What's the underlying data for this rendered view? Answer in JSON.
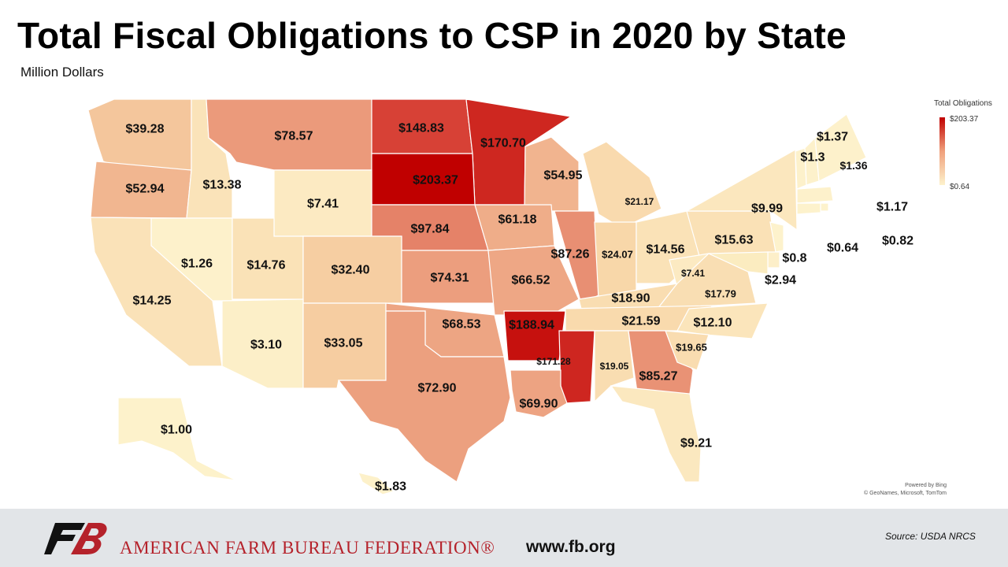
{
  "header": {
    "title": "Total Fiscal Obligations to CSP in 2020 by State",
    "subtitle": "Million Dollars"
  },
  "legend": {
    "title": "Total Obligations",
    "max_label": "$203.37",
    "min_label": "$0.64",
    "max_color": "#c00000",
    "min_color": "#fdf2cc"
  },
  "attribution": {
    "line1": "Powered by Bing",
    "line2": "© GeoNames, Microsoft, TomTom"
  },
  "footer": {
    "org_name": "AMERICAN FARM BUREAU FEDERATION®",
    "url": "www.fb.org",
    "source": "Source:  USDA  NRCS",
    "brand_color": "#b5222b"
  },
  "states": [
    {
      "abbr": "WA",
      "label": "$39.28",
      "value": 39.28
    },
    {
      "abbr": "OR",
      "label": "$52.94",
      "value": 52.94
    },
    {
      "abbr": "ID",
      "label": "$13.38",
      "value": 13.38
    },
    {
      "abbr": "MT",
      "label": "$78.57",
      "value": 78.57
    },
    {
      "abbr": "ND",
      "label": "$148.83",
      "value": 148.83
    },
    {
      "abbr": "MN",
      "label": "$170.70",
      "value": 170.7
    },
    {
      "abbr": "SD",
      "label": "$203.37",
      "value": 203.37
    },
    {
      "abbr": "WY",
      "label": "$7.41",
      "value": 7.41
    },
    {
      "abbr": "WI",
      "label": "$54.95",
      "value": 54.95
    },
    {
      "abbr": "MI",
      "label": "$21.17",
      "value": 21.17
    },
    {
      "abbr": "NE",
      "label": "$97.84",
      "value": 97.84
    },
    {
      "abbr": "IA",
      "label": "$61.18",
      "value": 61.18
    },
    {
      "abbr": "NV",
      "label": "$1.26",
      "value": 1.26
    },
    {
      "abbr": "UT",
      "label": "$14.76",
      "value": 14.76
    },
    {
      "abbr": "CO",
      "label": "$32.40",
      "value": 32.4
    },
    {
      "abbr": "KS",
      "label": "$74.31",
      "value": 74.31
    },
    {
      "abbr": "MO",
      "label": "$66.52",
      "value": 66.52
    },
    {
      "abbr": "IL",
      "label": "$87.26",
      "value": 87.26
    },
    {
      "abbr": "IN",
      "label": "$24.07",
      "value": 24.07
    },
    {
      "abbr": "OH",
      "label": "$14.56",
      "value": 14.56
    },
    {
      "abbr": "PA",
      "label": "$15.63",
      "value": 15.63
    },
    {
      "abbr": "NY",
      "label": "$9.99",
      "value": 9.99
    },
    {
      "abbr": "CA",
      "label": "$14.25",
      "value": 14.25
    },
    {
      "abbr": "AZ",
      "label": "$3.10",
      "value": 3.1
    },
    {
      "abbr": "NM",
      "label": "$33.05",
      "value": 33.05
    },
    {
      "abbr": "OK",
      "label": "$68.53",
      "value": 68.53
    },
    {
      "abbr": "AR",
      "label": "$188.94",
      "value": 188.94
    },
    {
      "abbr": "KY",
      "label": "$18.90",
      "value": 18.9
    },
    {
      "abbr": "WV",
      "label": "$7.41",
      "value": 7.41
    },
    {
      "abbr": "VA",
      "label": "$17.79",
      "value": 17.79
    },
    {
      "abbr": "TN",
      "label": "$21.59",
      "value": 21.59
    },
    {
      "abbr": "NC",
      "label": "$12.10",
      "value": 12.1
    },
    {
      "abbr": "TX",
      "label": "$72.90",
      "value": 72.9
    },
    {
      "abbr": "MS",
      "label": "$171.28",
      "value": 171.28
    },
    {
      "abbr": "AL",
      "label": "$19.05",
      "value": 19.05
    },
    {
      "abbr": "GA",
      "label": "$85.27",
      "value": 85.27
    },
    {
      "abbr": "SC",
      "label": "$19.65",
      "value": 19.65
    },
    {
      "abbr": "LA",
      "label": "$69.90",
      "value": 69.9
    },
    {
      "abbr": "FL",
      "label": "$9.21",
      "value": 9.21
    },
    {
      "abbr": "AK",
      "label": "$1.00",
      "value": 1.0
    },
    {
      "abbr": "HI",
      "label": "$1.83",
      "value": 1.83
    },
    {
      "abbr": "VT",
      "label": "$1.3",
      "value": 1.3
    },
    {
      "abbr": "NH",
      "label": "$1.36",
      "value": 1.36
    },
    {
      "abbr": "ME",
      "label": "$1.37",
      "value": 1.37
    },
    {
      "abbr": "MA",
      "label": "$1.17",
      "value": 1.17
    },
    {
      "abbr": "RI",
      "label": "$0.82",
      "value": 0.82
    },
    {
      "abbr": "CT",
      "label": "$0.64",
      "value": 0.64
    },
    {
      "abbr": "NJ",
      "label": "$0.8",
      "value": 0.8
    },
    {
      "abbr": "DE",
      "label": "$2.94",
      "value": 2.94
    },
    {
      "abbr": "MD",
      "label": "",
      "value": null
    }
  ]
}
